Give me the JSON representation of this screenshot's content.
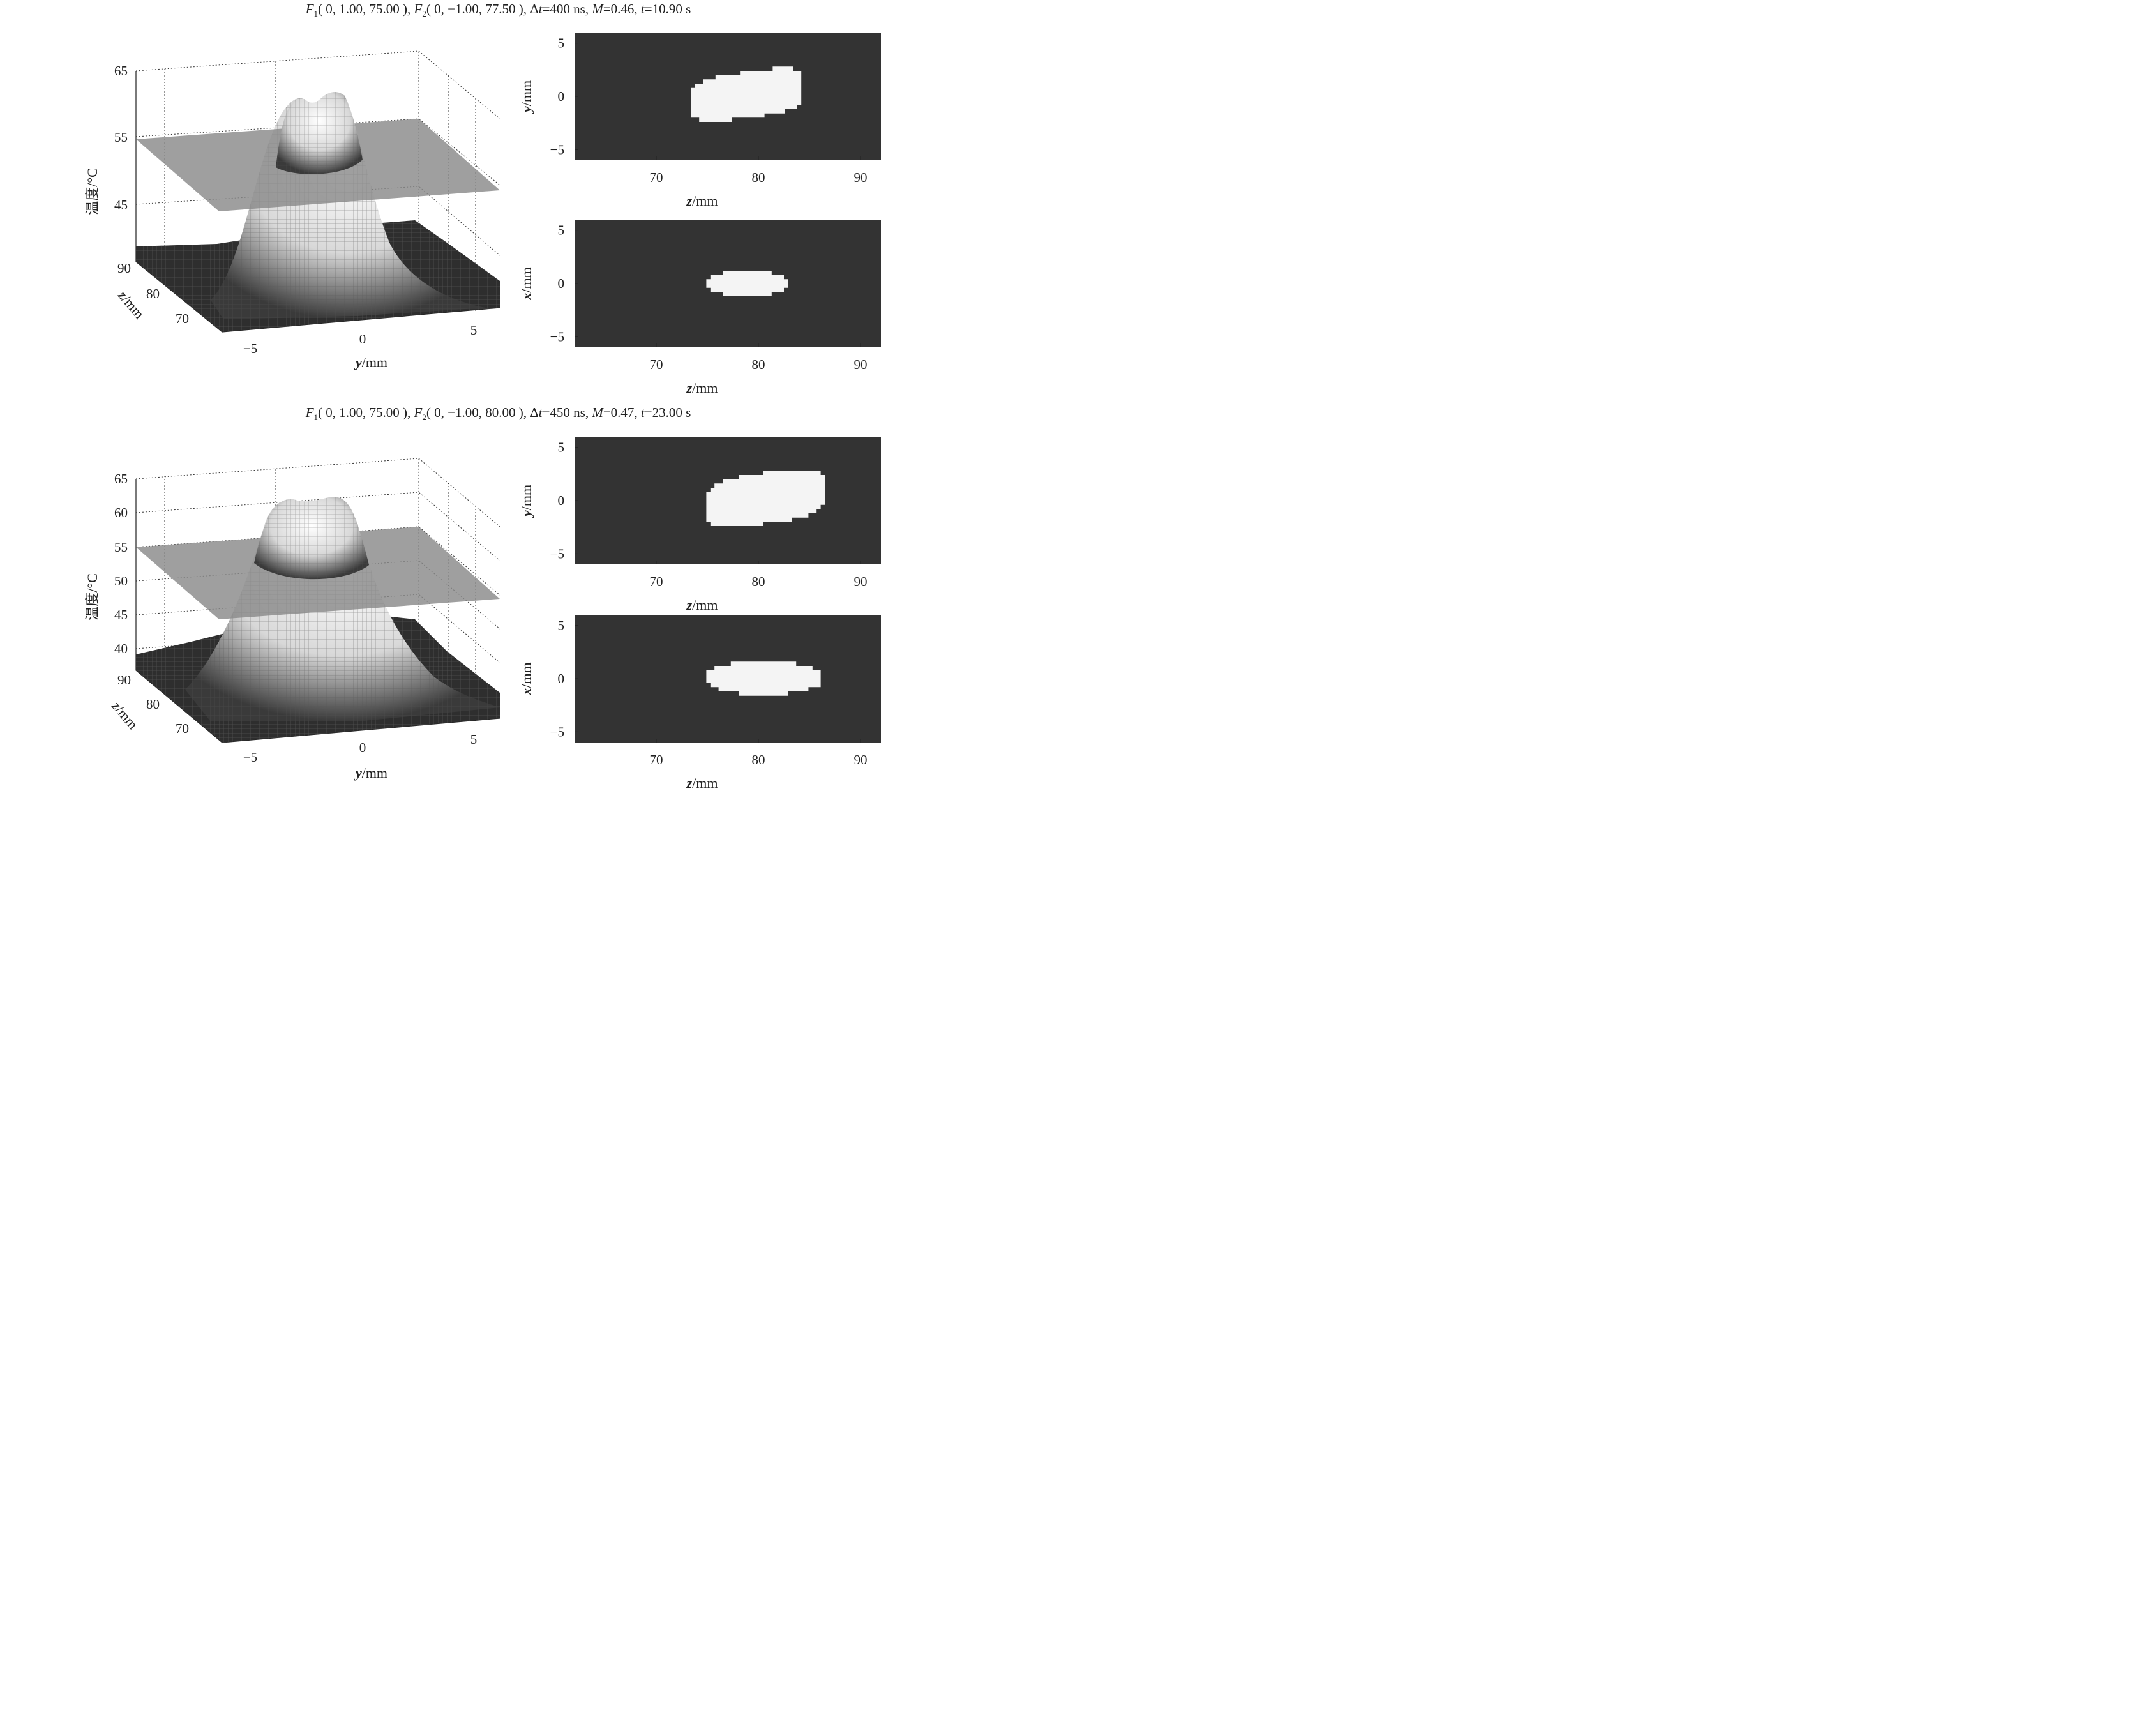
{
  "page": {
    "background": "#ffffff"
  },
  "colors": {
    "surface_fill": "#2e2e2e",
    "surface_highlight": "#ffffff",
    "threshold_plane": "#8a8a8a",
    "map_background": "#333333",
    "ablation_region": "#f4f4f4"
  },
  "panels": [
    {
      "title": {
        "f1": "F",
        "f1_sub": "1",
        "f1_args": "( 0, 1.00, 75.00 )",
        "f2": "F",
        "f2_sub": "2",
        "f2_args": "( 0, −1.00, 77.50 )",
        "dt_prefix": "Δ",
        "dt_var": "t",
        "dt_val": "=400 ns,",
        "m_var": "M",
        "m_val": "=0.46,",
        "t_var": "t",
        "t_val": "=10.90 s"
      },
      "surface": {
        "zlabel": "温度/°C",
        "zticks": [
          "45",
          "55",
          "65"
        ],
        "yticks": [
          "−5",
          "0",
          "5"
        ],
        "ylabel_var": "y",
        "ylabel_unit": "/mm",
        "depth_ticks": [
          "70",
          "80",
          "90"
        ],
        "depth_label_var": "z",
        "depth_label_unit": "/mm"
      },
      "map_yz": {
        "xticks": [
          "70",
          "80",
          "90"
        ],
        "xlabel_var": "z",
        "xlabel_unit": "/mm",
        "yticks": [
          "5",
          "0",
          "−5"
        ],
        "ylabel_var": "y",
        "ylabel_unit": "/mm"
      },
      "map_xz": {
        "xticks": [
          "70",
          "80",
          "90"
        ],
        "xlabel_var": "z",
        "xlabel_unit": "/mm",
        "yticks": [
          "5",
          "0",
          "−5"
        ],
        "ylabel_var": "x",
        "ylabel_unit": "/mm"
      }
    },
    {
      "title": {
        "f1": "F",
        "f1_sub": "1",
        "f1_args": "( 0, 1.00, 75.00 )",
        "f2": "F",
        "f2_sub": "2",
        "f2_args": "( 0, −1.00, 80.00 )",
        "dt_prefix": "Δ",
        "dt_var": "t",
        "dt_val": "=450 ns,",
        "m_var": "M",
        "m_val": "=0.47,",
        "t_var": "t",
        "t_val": "=23.00 s"
      },
      "surface": {
        "zlabel": "温度/°C",
        "zticks": [
          "40",
          "45",
          "50",
          "55",
          "60",
          "65"
        ],
        "yticks": [
          "−5",
          "0",
          "5"
        ],
        "ylabel_var": "y",
        "ylabel_unit": "/mm",
        "depth_ticks": [
          "70",
          "80",
          "90"
        ],
        "depth_label_var": "z",
        "depth_label_unit": "/mm"
      },
      "map_yz": {
        "xticks": [
          "70",
          "80",
          "90"
        ],
        "xlabel_var": "z",
        "xlabel_unit": "/mm",
        "yticks": [
          "5",
          "0",
          "−5"
        ],
        "ylabel_var": "y",
        "ylabel_unit": "/mm"
      },
      "map_xz": {
        "xticks": [
          "70",
          "80",
          "90"
        ],
        "xlabel_var": "z",
        "xlabel_unit": "/mm",
        "yticks": [
          "5",
          "0",
          "−5"
        ],
        "ylabel_var": "x",
        "ylabel_unit": "/mm"
      }
    }
  ],
  "chart_data": [
    {
      "type": "surface",
      "panel": 1,
      "zlabel": "温度/°C",
      "xlabel": "y/mm",
      "ylabel": "z/mm",
      "zlim": [
        35,
        65
      ],
      "xlim": [
        -6,
        6
      ],
      "ylim": [
        62,
        92
      ],
      "peak_temperature_c": 61,
      "threshold_plane_c": 54,
      "peak_position": {
        "y_mm": 0,
        "z_mm": 79
      }
    },
    {
      "type": "heatmap",
      "panel": 1,
      "view": "y-z",
      "xlabel": "z/mm",
      "ylabel": "y/mm",
      "xlim": [
        62,
        92
      ],
      "ylim": [
        -6,
        6
      ],
      "region_z_extent_mm": [
        73,
        84.5
      ],
      "region_y_extent_mm": [
        -2,
        2.3
      ]
    },
    {
      "type": "heatmap",
      "panel": 1,
      "view": "x-z",
      "xlabel": "z/mm",
      "ylabel": "x/mm",
      "xlim": [
        62,
        92
      ],
      "ylim": [
        -6,
        6
      ],
      "region_z_extent_mm": [
        74.5,
        83
      ],
      "region_x_extent_mm": [
        -1.2,
        1.2
      ]
    },
    {
      "type": "surface",
      "panel": 2,
      "zlabel": "温度/°C",
      "xlabel": "y/mm",
      "ylabel": "z/mm",
      "zlim": [
        38,
        65
      ],
      "xlim": [
        -6,
        6
      ],
      "ylim": [
        62,
        92
      ],
      "peak_temperature_c": 62,
      "threshold_plane_c": 54,
      "peak_position": {
        "y_mm": 0,
        "z_mm": 80
      }
    },
    {
      "type": "heatmap",
      "panel": 2,
      "view": "y-z",
      "xlabel": "z/mm",
      "ylabel": "y/mm",
      "xlim": [
        62,
        92
      ],
      "ylim": [
        -6,
        6
      ],
      "region_z_extent_mm": [
        74.5,
        86.5
      ],
      "region_y_extent_mm": [
        -2.2,
        2.6
      ]
    },
    {
      "type": "heatmap",
      "panel": 2,
      "view": "x-z",
      "xlabel": "z/mm",
      "ylabel": "x/mm",
      "xlim": [
        62,
        92
      ],
      "ylim": [
        -6,
        6
      ],
      "region_z_extent_mm": [
        74.5,
        86.2
      ],
      "region_x_extent_mm": [
        -1.5,
        1.6
      ]
    }
  ]
}
